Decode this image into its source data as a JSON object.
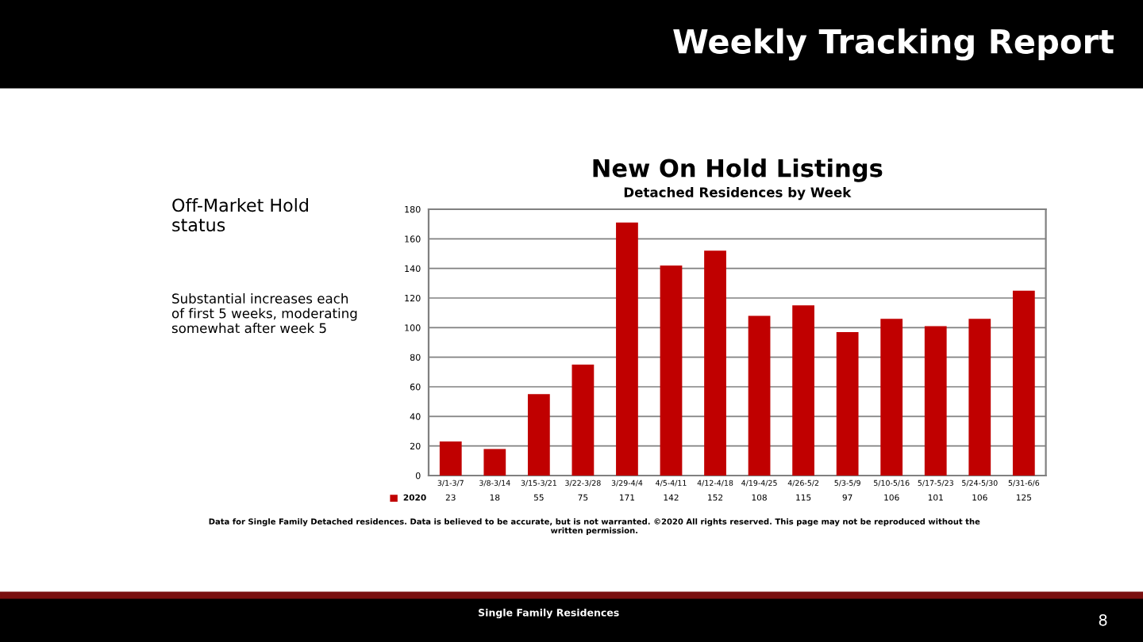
{
  "chart_data": {
    "type": "bar",
    "title": "New On Hold Listings",
    "subtitle": "Detached Residences by Week",
    "categories": [
      "3/1-3/7",
      "3/8-3/14",
      "3/15-3/21",
      "3/22-3/28",
      "3/29-4/4",
      "4/5-4/11",
      "4/12-4/18",
      "4/19-4/25",
      "4/26-5/2",
      "5/3-5/9",
      "5/10-5/16",
      "5/17-5/23",
      "5/24-5/30",
      "5/31-6/6"
    ],
    "series": [
      {
        "name": "2020",
        "color": "#c00000",
        "values": [
          23,
          18,
          55,
          75,
          171,
          142,
          152,
          108,
          115,
          97,
          106,
          101,
          106,
          125
        ]
      }
    ],
    "ylim": [
      0,
      180
    ],
    "yticks": [
      0,
      20,
      40,
      60,
      80,
      100,
      120,
      140,
      160,
      180
    ],
    "grid": "y",
    "data_labels": true,
    "annotations": [
      "Weekly Tracking Report",
      "Off-Market Hold status",
      "Substantial increases each of first 5 weeks, moderating somewhat after week 5",
      "Data for Single Family Detached residences. Data is believed to be accurate, but is not warranted. ©2020 All rights reserved. This page may not be reproduced without the written permission.",
      "Single Family Residences",
      "8"
    ]
  }
}
